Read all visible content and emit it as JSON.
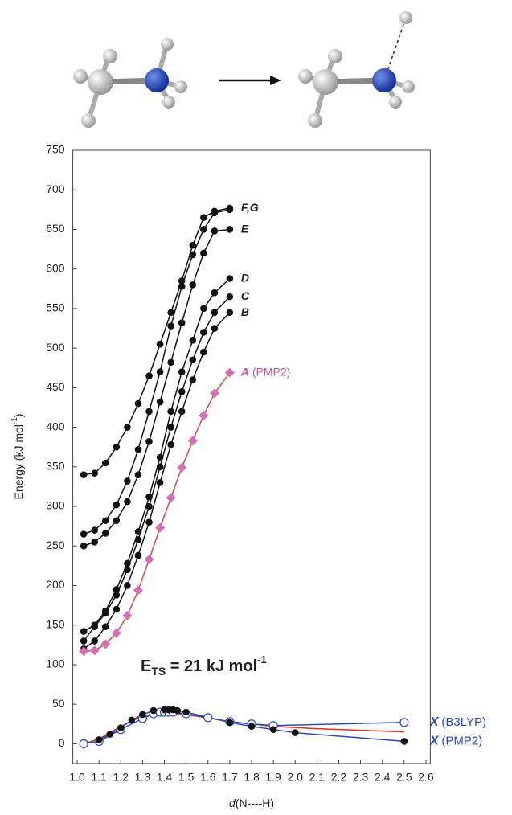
{
  "chart_data": {
    "type": "line",
    "y_label": {
      "text": "Energy (kJ mol",
      "sup": "-1",
      "close": ")"
    },
    "x_label": {
      "italic": "d",
      "text": "(N----H)"
    },
    "annotation": {
      "main": "E",
      "sub": "TS",
      "rest": " = 21 kJ mol",
      "sup": "-1"
    },
    "xlim": [
      0.98,
      2.62
    ],
    "ylim": [
      -25,
      750
    ],
    "xticks": [
      {
        "value": 1.0,
        "label": "1.0"
      },
      1.1,
      1.2,
      1.3,
      1.4,
      1.5,
      1.6,
      1.7,
      1.8,
      1.9,
      {
        "value": 2.0,
        "label": "2.0"
      },
      2.1,
      2.2,
      2.3,
      2.4,
      2.5,
      2.6
    ],
    "yticks": [
      0,
      50,
      100,
      150,
      200,
      250,
      300,
      350,
      400,
      450,
      500,
      550,
      600,
      650,
      700,
      750
    ],
    "series": [
      {
        "name": "F,G",
        "color": "#111111",
        "marker": "circle",
        "marker_color": "#111111",
        "x": [
          1.03,
          1.08,
          1.13,
          1.18,
          1.23,
          1.28,
          1.33,
          1.38,
          1.43,
          1.48,
          1.53,
          1.58,
          1.63,
          1.7
        ],
        "values": [
          340,
          342,
          355,
          375,
          400,
          430,
          465,
          505,
          545,
          585,
          630,
          665,
          673,
          677
        ]
      },
      {
        "color": "#111111",
        "marker": "circle",
        "marker_color": "#111111",
        "x": [
          1.03,
          1.08,
          1.13,
          1.18,
          1.23,
          1.28,
          1.33,
          1.38,
          1.43,
          1.48,
          1.53,
          1.58,
          1.63,
          1.7
        ],
        "values": [
          265,
          270,
          282,
          302,
          332,
          372,
          420,
          470,
          528,
          578,
          618,
          650,
          671,
          675
        ]
      },
      {
        "name": "E",
        "color": "#111111",
        "marker": "circle",
        "marker_color": "#111111",
        "x": [
          1.03,
          1.08,
          1.13,
          1.18,
          1.23,
          1.28,
          1.33,
          1.38,
          1.43,
          1.48,
          1.53,
          1.58,
          1.63,
          1.7
        ],
        "values": [
          250,
          255,
          266,
          282,
          306,
          340,
          382,
          432,
          482,
          532,
          580,
          620,
          648,
          650
        ]
      },
      {
        "name": "D",
        "color": "#111111",
        "marker": "circle",
        "marker_color": "#111111",
        "x": [
          1.03,
          1.08,
          1.13,
          1.18,
          1.23,
          1.28,
          1.33,
          1.38,
          1.43,
          1.48,
          1.53,
          1.58,
          1.63,
          1.7
        ],
        "values": [
          142,
          150,
          168,
          195,
          228,
          268,
          312,
          362,
          420,
          470,
          510,
          550,
          570,
          588
        ]
      },
      {
        "name": "C",
        "color": "#111111",
        "marker": "circle",
        "marker_color": "#111111",
        "x": [
          1.03,
          1.08,
          1.13,
          1.18,
          1.23,
          1.28,
          1.33,
          1.38,
          1.43,
          1.48,
          1.53,
          1.58,
          1.63,
          1.7
        ],
        "values": [
          130,
          148,
          165,
          188,
          220,
          258,
          300,
          350,
          400,
          445,
          485,
          520,
          545,
          565
        ]
      },
      {
        "name": "B",
        "color": "#111111",
        "marker": "circle",
        "marker_color": "#111111",
        "x": [
          1.03,
          1.08,
          1.13,
          1.18,
          1.23,
          1.28,
          1.33,
          1.38,
          1.43,
          1.48,
          1.53,
          1.58,
          1.63,
          1.7
        ],
        "values": [
          120,
          130,
          148,
          170,
          200,
          238,
          280,
          330,
          378,
          420,
          460,
          495,
          525,
          545
        ]
      },
      {
        "name": "A",
        "note": "(PMP2)",
        "color": "#d04a4a",
        "marker": "diamond",
        "marker_color": "#d36fb6",
        "label_color": "#c2549f",
        "x": [
          1.03,
          1.08,
          1.13,
          1.18,
          1.23,
          1.28,
          1.33,
          1.38,
          1.43,
          1.48,
          1.53,
          1.58,
          1.63,
          1.7
        ],
        "values": [
          117,
          118,
          126,
          140,
          162,
          194,
          233,
          273,
          311,
          349,
          383,
          415,
          443,
          469
        ]
      },
      {
        "color": "#e03020",
        "marker": "none",
        "x": [
          1.03,
          1.1,
          1.2,
          1.3,
          1.4,
          1.5,
          1.7,
          1.9,
          2.1,
          2.3,
          2.5
        ],
        "values": [
          0,
          6,
          22,
          35,
          40,
          37,
          28,
          22,
          19,
          17,
          15
        ]
      },
      {
        "name": "X",
        "note": "(B3LYP)",
        "color": "#2b4bb5",
        "marker": "open-circle",
        "marker_color": "#2b4bb5",
        "label_color": "#2b4bb5",
        "x": [
          1.03,
          1.1,
          1.2,
          1.3,
          1.35,
          1.38,
          1.4,
          1.42,
          1.44,
          1.5,
          1.6,
          1.7,
          1.8,
          1.9,
          2.5
        ],
        "values": [
          0,
          3,
          18,
          32,
          38,
          40,
          40,
          40,
          40,
          38,
          33,
          28,
          25,
          23,
          27
        ]
      },
      {
        "name": "X",
        "note": "(PMP2)",
        "color": "#2b4bb5",
        "marker": "circle",
        "marker_color": "#111111",
        "label_color": "#2b4bb5",
        "x": [
          1.1,
          1.15,
          1.2,
          1.25,
          1.3,
          1.35,
          1.4,
          1.42,
          1.44,
          1.46,
          1.5,
          1.7,
          1.8,
          1.9,
          2.0,
          2.5
        ],
        "values": [
          5,
          12,
          20,
          30,
          37,
          42,
          43,
          43,
          43,
          42,
          40,
          27,
          22,
          18,
          14,
          3
        ]
      }
    ]
  }
}
